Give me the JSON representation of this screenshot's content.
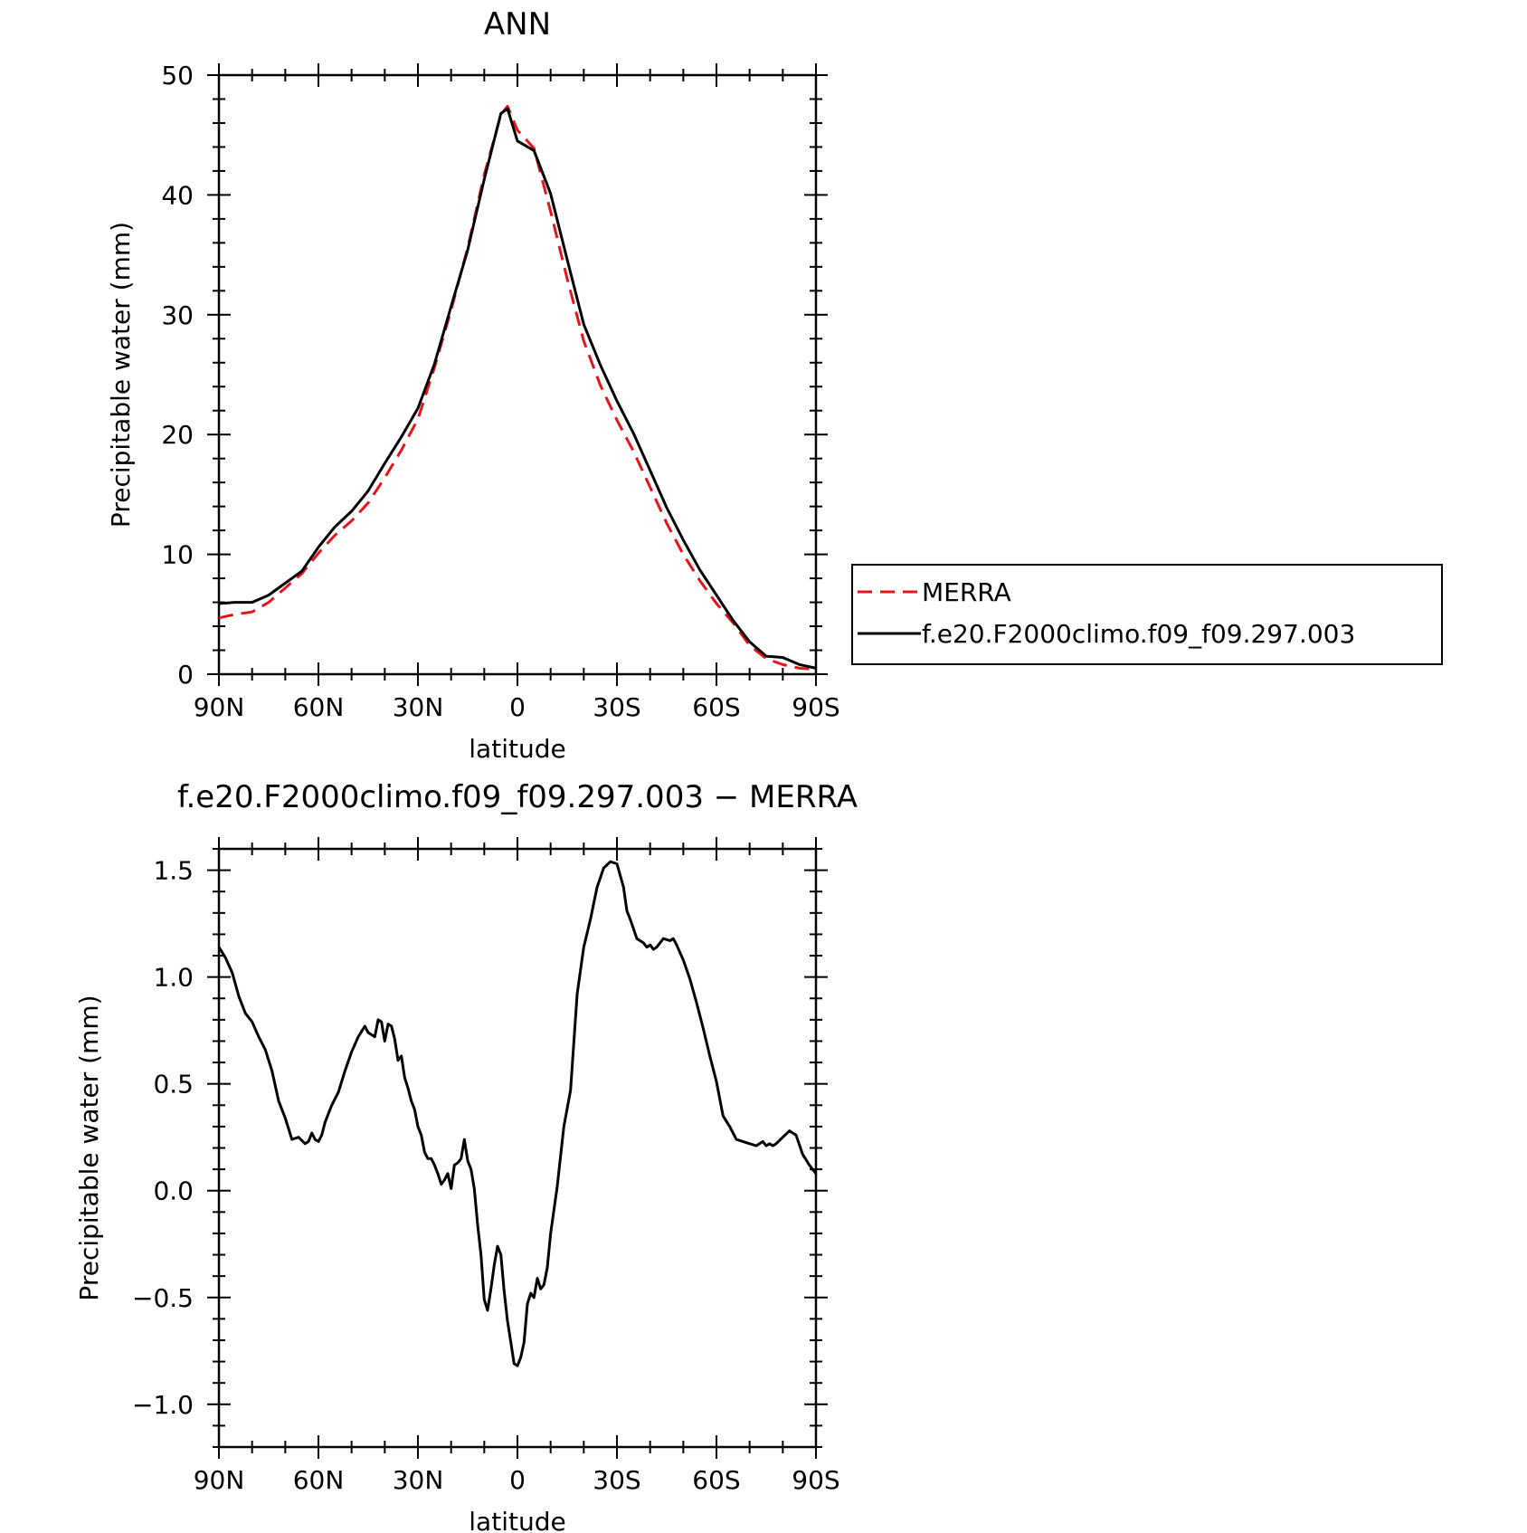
{
  "chart_data": [
    {
      "type": "line",
      "title": "ANN",
      "xlabel": "latitude",
      "ylabel": "Precipitable water (mm)",
      "xlim": [
        90,
        -90
      ],
      "ylim": [
        0,
        50
      ],
      "x_ticks": [
        90,
        60,
        30,
        0,
        -30,
        -60,
        -90
      ],
      "x_tick_labels": [
        "90N",
        "60N",
        "30N",
        "0",
        "30S",
        "60S",
        "90S"
      ],
      "y_ticks": [
        0,
        10,
        20,
        30,
        40,
        50
      ],
      "y_tick_labels": [
        "0",
        "10",
        "20",
        "30",
        "40",
        "50"
      ],
      "grid": false,
      "legend_position": "right",
      "series": [
        {
          "name": "MERRA",
          "color": "#e8141b",
          "dash": "dashed",
          "x": [
            90,
            85,
            80,
            75,
            70,
            65,
            60,
            55,
            50,
            45,
            40,
            35,
            30,
            25,
            20,
            15,
            10,
            5,
            3,
            0,
            -5,
            -10,
            -15,
            -20,
            -25,
            -30,
            -35,
            -40,
            -45,
            -50,
            -55,
            -60,
            -65,
            -70,
            -75,
            -80,
            -85,
            -90
          ],
          "values": [
            4.7,
            5.0,
            5.2,
            6.0,
            7.2,
            8.4,
            10.1,
            11.6,
            12.8,
            14.3,
            16.4,
            18.7,
            21.3,
            25.6,
            30.4,
            35.6,
            41.7,
            46.7,
            47.4,
            45.4,
            43.9,
            38.6,
            33.0,
            27.8,
            24.1,
            21.2,
            18.6,
            15.6,
            12.6,
            10.0,
            7.8,
            5.9,
            4.3,
            2.4,
            1.3,
            0.8,
            0.5,
            0.4
          ]
        },
        {
          "name": "f.e20.F2000climo.f09_f09.297.003",
          "color": "#000000",
          "dash": "solid",
          "x": [
            90,
            85,
            80,
            75,
            70,
            65,
            60,
            55,
            50,
            45,
            40,
            35,
            30,
            25,
            20,
            15,
            10,
            5,
            3,
            0,
            -5,
            -10,
            -15,
            -20,
            -25,
            -30,
            -35,
            -40,
            -45,
            -50,
            -55,
            -60,
            -65,
            -70,
            -75,
            -80,
            -85,
            -90
          ],
          "values": [
            5.9,
            6.0,
            6.0,
            6.6,
            7.6,
            8.6,
            10.6,
            12.3,
            13.6,
            15.3,
            17.6,
            19.8,
            22.2,
            25.9,
            30.7,
            35.4,
            41.3,
            46.8,
            47.2,
            44.5,
            43.7,
            40.1,
            34.6,
            29.2,
            25.8,
            22.8,
            20.1,
            17.0,
            13.9,
            11.2,
            8.7,
            6.6,
            4.5,
            2.7,
            1.5,
            1.4,
            0.8,
            0.5
          ]
        }
      ]
    },
    {
      "type": "line",
      "title": "f.e20.F2000climo.f09_f09.297.003 − MERRA",
      "xlabel": "latitude",
      "ylabel": "Precipitable water (mm)",
      "xlim": [
        90,
        -90
      ],
      "ylim": [
        -1.2,
        1.6
      ],
      "x_ticks": [
        90,
        60,
        30,
        0,
        -30,
        -60,
        -90
      ],
      "x_tick_labels": [
        "90N",
        "60N",
        "30N",
        "0",
        "30S",
        "60S",
        "90S"
      ],
      "y_ticks": [
        1.5,
        1.0,
        0.5,
        0.0,
        -0.5,
        -1.0
      ],
      "y_tick_labels": [
        "1.5",
        "1.0",
        "0.5",
        "0.0",
        "−0.5",
        "−1.0"
      ],
      "grid": false,
      "series": [
        {
          "color": "#000000",
          "dash": "solid",
          "x": [
            90,
            88,
            86,
            84,
            82,
            80,
            78,
            76,
            74,
            72,
            70,
            68,
            66,
            64,
            63,
            62,
            61,
            60,
            59,
            58,
            56,
            54,
            52,
            50,
            48,
            46,
            45,
            44,
            43,
            42,
            41,
            40,
            39,
            38,
            37,
            36,
            35,
            34,
            33,
            32,
            31,
            30,
            29,
            28,
            27,
            26,
            25,
            24,
            23,
            22,
            21,
            20,
            19,
            18,
            17,
            16,
            15,
            14,
            13,
            12,
            11,
            10,
            9,
            8,
            7,
            6,
            5,
            4,
            3,
            2,
            1,
            0,
            -1,
            -2,
            -3,
            -4,
            -5,
            -6,
            -7,
            -8,
            -9,
            -10,
            -12,
            -14,
            -16,
            -18,
            -20,
            -22,
            -24,
            -26,
            -28,
            -30,
            -32,
            -33,
            -34,
            -36,
            -38,
            -39,
            -40,
            -41,
            -42,
            -44,
            -46,
            -47,
            -48,
            -50,
            -52,
            -54,
            -56,
            -58,
            -60,
            -62,
            -64,
            -66,
            -68,
            -70,
            -72,
            -74,
            -75,
            -76,
            -77,
            -78,
            -80,
            -82,
            -83,
            -84,
            -86,
            -88,
            -90
          ],
          "values": [
            1.14,
            1.09,
            1.02,
            0.91,
            0.83,
            0.79,
            0.72,
            0.66,
            0.56,
            0.42,
            0.34,
            0.24,
            0.25,
            0.22,
            0.23,
            0.27,
            0.24,
            0.23,
            0.26,
            0.32,
            0.4,
            0.46,
            0.56,
            0.65,
            0.72,
            0.77,
            0.74,
            0.73,
            0.72,
            0.8,
            0.79,
            0.7,
            0.78,
            0.77,
            0.71,
            0.61,
            0.63,
            0.53,
            0.48,
            0.42,
            0.38,
            0.3,
            0.26,
            0.18,
            0.15,
            0.15,
            0.12,
            0.08,
            0.03,
            0.05,
            0.08,
            0.01,
            0.12,
            0.13,
            0.15,
            0.24,
            0.14,
            0.1,
            0.01,
            -0.16,
            -0.3,
            -0.51,
            -0.56,
            -0.46,
            -0.35,
            -0.26,
            -0.3,
            -0.47,
            -0.61,
            -0.71,
            -0.81,
            -0.82,
            -0.78,
            -0.71,
            -0.53,
            -0.48,
            -0.5,
            -0.41,
            -0.46,
            -0.44,
            -0.36,
            -0.2,
            0.02,
            0.3,
            0.47,
            0.92,
            1.14,
            1.27,
            1.42,
            1.51,
            1.54,
            1.53,
            1.42,
            1.31,
            1.27,
            1.18,
            1.16,
            1.14,
            1.15,
            1.13,
            1.14,
            1.18,
            1.17,
            1.18,
            1.15,
            1.08,
            0.99,
            0.88,
            0.76,
            0.63,
            0.51,
            0.35,
            0.3,
            0.24,
            0.23,
            0.22,
            0.21,
            0.23,
            0.21,
            0.22,
            0.21,
            0.22,
            0.25,
            0.28,
            0.27,
            0.26,
            0.17,
            0.12,
            0.08
          ]
        }
      ]
    }
  ]
}
